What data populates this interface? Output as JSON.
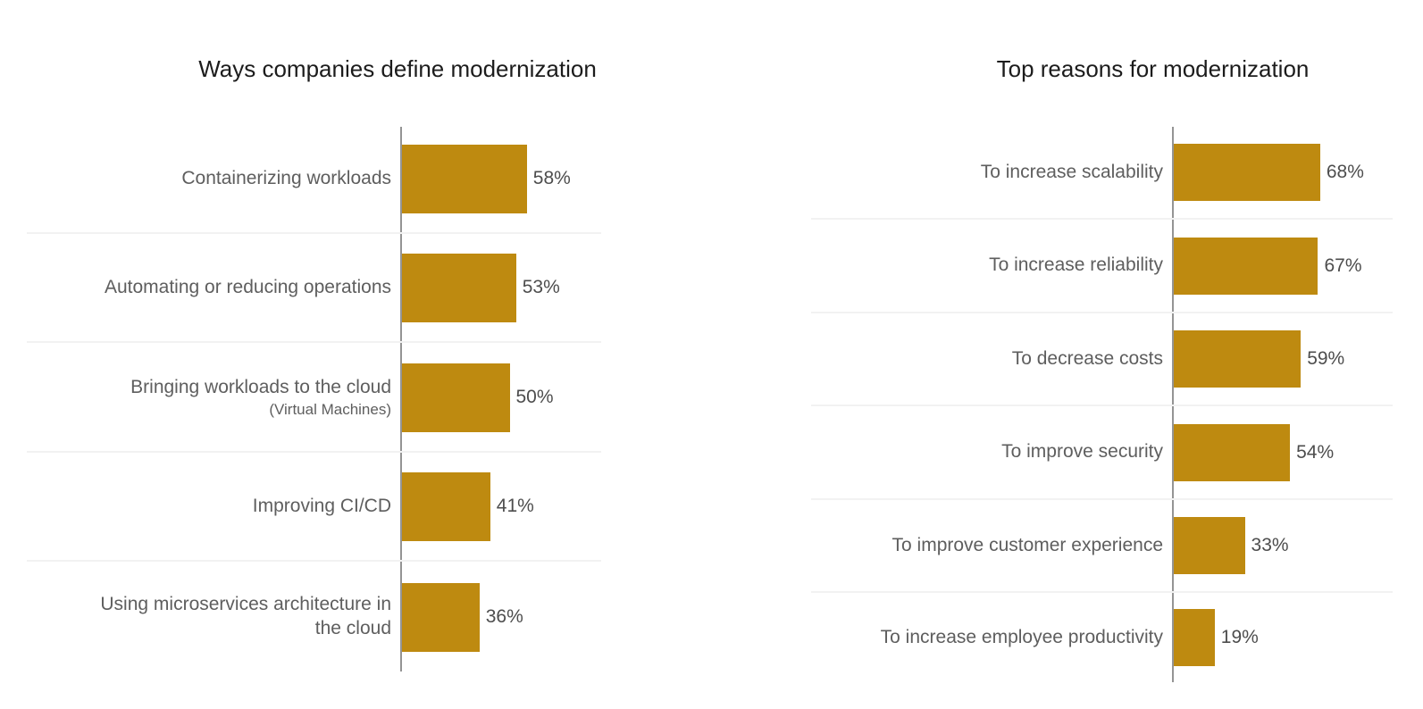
{
  "colors": {
    "bar": "#be8a10",
    "axis_line": "#949494",
    "row_separator": "#f2f2f2",
    "title_text": "#1c1c1c",
    "category_text": "#5e5e5e",
    "value_text": "#4d4d4d",
    "background": "#ffffff"
  },
  "chart_data": [
    {
      "type": "bar",
      "orientation": "horizontal",
      "title": "Ways companies define modernization",
      "categories": [
        "Containerizing workloads",
        "Automating or reducing operations",
        "Bringing workloads to the cloud (Virtual Machines)",
        "Improving CI/CD",
        "Using microservices architecture in the cloud"
      ],
      "values": [
        58,
        53,
        50,
        41,
        36
      ],
      "value_labels": [
        "58%",
        "53%",
        "50%",
        "41%",
        "36%"
      ],
      "labels": [
        {
          "line1": "Containerizing workloads"
        },
        {
          "line1": "Automating or reducing operations"
        },
        {
          "line1": "Bringing workloads to the cloud",
          "line2": "(Virtual Machines)"
        },
        {
          "line1": "Improving CI/CD"
        },
        {
          "line1": "Using microservices architecture in",
          "line2": "the cloud"
        }
      ],
      "unit": "percent",
      "xlim": [
        0,
        100
      ],
      "legend": "none",
      "gridlines": "none",
      "row_separators": true,
      "bar_color": "#be8a10"
    },
    {
      "type": "bar",
      "orientation": "horizontal",
      "title": "Top reasons for modernization",
      "categories": [
        "To increase scalability",
        "To increase reliability",
        "To decrease costs",
        "To improve security",
        "To improve customer experience",
        "To increase employee productivity"
      ],
      "values": [
        68,
        67,
        59,
        54,
        33,
        19
      ],
      "value_labels": [
        "68%",
        "67%",
        "59%",
        "54%",
        "33%",
        "19%"
      ],
      "unit": "percent",
      "xlim": [
        0,
        100
      ],
      "legend": "none",
      "gridlines": "none",
      "row_separators": true,
      "bar_color": "#be8a10"
    }
  ]
}
